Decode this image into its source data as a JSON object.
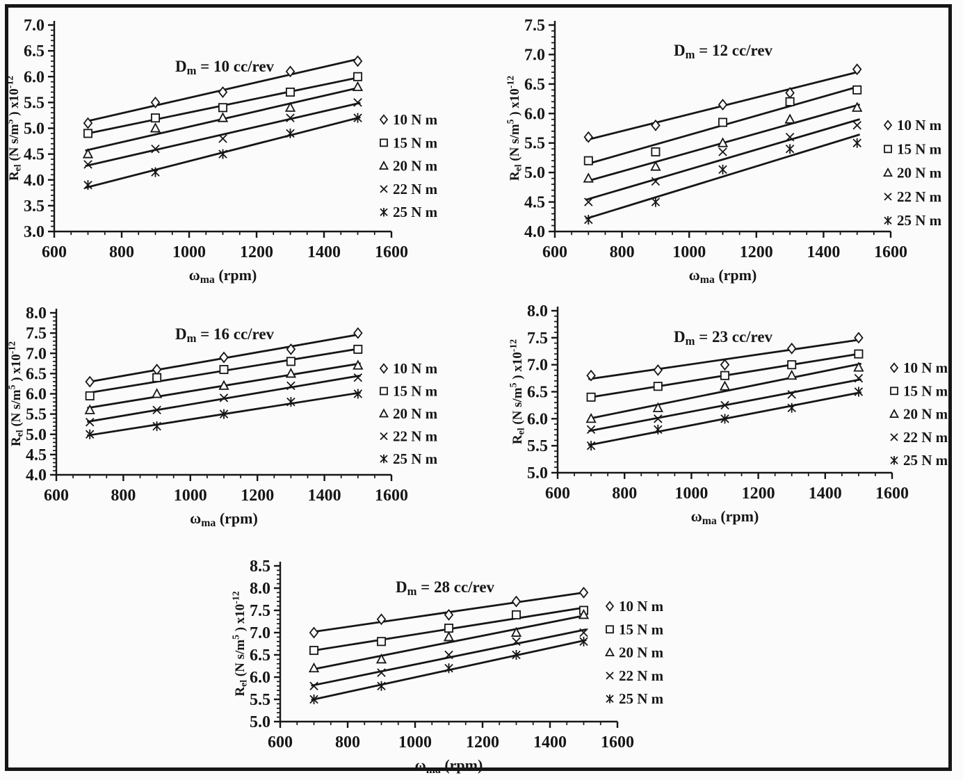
{
  "figure": {
    "description_labels": {
      "x_axis": "ω_ma (rpm)",
      "y_axis": "R_el (N s/m^5) x10^-12"
    },
    "border_color": "#161616",
    "background_color": "#fbfbfb"
  },
  "chart_data": [
    {
      "id": "dm-10",
      "type": "scatter",
      "title": "Dm = 10 cc/rev",
      "title_parts": [
        {
          "t": "D"
        },
        {
          "t": "m",
          "style": "sub"
        },
        {
          "t": " = 10 cc/rev"
        }
      ],
      "xlabel": "ω_ma (rpm)",
      "xlabel_parts": [
        {
          "t": "ω"
        },
        {
          "t": "ma",
          "style": "sub"
        },
        {
          "t": " (rpm)"
        }
      ],
      "ylabel": "R_el (N s/m^5) x10^-12",
      "ylabel_parts": [
        {
          "t": "R"
        },
        {
          "t": "el",
          "style": "sub"
        },
        {
          "t": " (N s/m"
        },
        {
          "t": "5",
          "style": "sup"
        },
        {
          "t": " ) x10"
        },
        {
          "t": "-12",
          "style": "sup"
        }
      ],
      "x": [
        700,
        900,
        1100,
        1300,
        1500
      ],
      "xlim": [
        600,
        1600
      ],
      "xtick_major": 200,
      "xtick_minor": 50,
      "ylim": [
        3.0,
        7.0
      ],
      "ytick_major": 0.5,
      "ytick_minor": 0.1,
      "grid": false,
      "legend_position": "right",
      "trendline": "linear",
      "series": [
        {
          "name": "10 N m",
          "marker": "diamond",
          "values": [
            5.1,
            5.5,
            5.7,
            6.1,
            6.3
          ]
        },
        {
          "name": "15 N m",
          "marker": "square",
          "values": [
            4.9,
            5.2,
            5.4,
            5.7,
            6.0
          ]
        },
        {
          "name": "20 N m",
          "marker": "triangle",
          "values": [
            4.5,
            5.0,
            5.2,
            5.4,
            5.8
          ]
        },
        {
          "name": "22 N m",
          "marker": "x",
          "values": [
            4.3,
            4.6,
            4.8,
            5.2,
            5.5
          ]
        },
        {
          "name": "25 N m",
          "marker": "star",
          "values": [
            3.9,
            4.15,
            4.5,
            4.9,
            5.2
          ]
        }
      ]
    },
    {
      "id": "dm-12",
      "type": "scatter",
      "title": "Dm = 12 cc/rev",
      "title_parts": [
        {
          "t": "D"
        },
        {
          "t": "m",
          "style": "sub"
        },
        {
          "t": " = 12 cc/rev"
        }
      ],
      "xlabel": "ω_ma (rpm)",
      "xlabel_parts": [
        {
          "t": "ω"
        },
        {
          "t": "ma",
          "style": "sub"
        },
        {
          "t": " (rpm)"
        }
      ],
      "ylabel": "R_el (N s/m^5) x10^-12",
      "ylabel_parts": [
        {
          "t": "R"
        },
        {
          "t": "el",
          "style": "sub"
        },
        {
          "t": " (N s/m"
        },
        {
          "t": "5",
          "style": "sup"
        },
        {
          "t": " ) x10"
        },
        {
          "t": "-12",
          "style": "sup"
        }
      ],
      "x": [
        700,
        900,
        1100,
        1300,
        1500
      ],
      "xlim": [
        600,
        1600
      ],
      "xtick_major": 200,
      "xtick_minor": 50,
      "ylim": [
        4.0,
        7.5
      ],
      "ytick_major": 0.5,
      "ytick_minor": 0.1,
      "grid": false,
      "legend_position": "right",
      "trendline": "linear",
      "series": [
        {
          "name": "10 N m",
          "marker": "diamond",
          "values": [
            5.6,
            5.8,
            6.15,
            6.35,
            6.75
          ]
        },
        {
          "name": "15 N m",
          "marker": "square",
          "values": [
            5.2,
            5.35,
            5.85,
            6.2,
            6.4
          ]
        },
        {
          "name": "20 N m",
          "marker": "triangle",
          "values": [
            4.9,
            5.1,
            5.5,
            5.9,
            6.1
          ]
        },
        {
          "name": "22 N m",
          "marker": "x",
          "values": [
            4.5,
            4.85,
            5.35,
            5.6,
            5.8
          ]
        },
        {
          "name": "25 N m",
          "marker": "star",
          "values": [
            4.2,
            4.5,
            5.05,
            5.4,
            5.5
          ]
        }
      ]
    },
    {
      "id": "dm-16",
      "type": "scatter",
      "title": "Dm = 16 cc/rev",
      "title_parts": [
        {
          "t": "D"
        },
        {
          "t": "m",
          "style": "sub"
        },
        {
          "t": " = 16 cc/rev"
        }
      ],
      "xlabel": "ω_ma (rpm)",
      "xlabel_parts": [
        {
          "t": "ω"
        },
        {
          "t": "ma",
          "style": "sub"
        },
        {
          "t": " (rpm)"
        }
      ],
      "ylabel": "R_el (N s/m^5) x10^-12",
      "ylabel_parts": [
        {
          "t": "R"
        },
        {
          "t": "el",
          "style": "sub"
        },
        {
          "t": " (N s/m"
        },
        {
          "t": "5",
          "style": "sup"
        },
        {
          "t": " ) x10"
        },
        {
          "t": "-12",
          "style": "sup"
        }
      ],
      "x": [
        700,
        900,
        1100,
        1300,
        1500
      ],
      "xlim": [
        600,
        1600
      ],
      "xtick_major": 200,
      "xtick_minor": 50,
      "ylim": [
        4.0,
        8.0
      ],
      "ytick_major": 0.5,
      "ytick_minor": 0.1,
      "grid": false,
      "legend_position": "right",
      "trendline": "linear",
      "series": [
        {
          "name": "10 N m",
          "marker": "diamond",
          "values": [
            6.3,
            6.6,
            6.9,
            7.1,
            7.5
          ]
        },
        {
          "name": "15 N m",
          "marker": "square",
          "values": [
            5.95,
            6.4,
            6.6,
            6.8,
            7.1
          ]
        },
        {
          "name": "20 N m",
          "marker": "triangle",
          "values": [
            5.6,
            6.0,
            6.2,
            6.5,
            6.7
          ]
        },
        {
          "name": "22 N m",
          "marker": "x",
          "values": [
            5.3,
            5.6,
            5.9,
            6.2,
            6.4
          ]
        },
        {
          "name": "25 N m",
          "marker": "star",
          "values": [
            5.0,
            5.2,
            5.5,
            5.8,
            6.0
          ]
        }
      ]
    },
    {
      "id": "dm-23",
      "type": "scatter",
      "title": "Dm = 23 cc/rev",
      "title_parts": [
        {
          "t": "D"
        },
        {
          "t": "m",
          "style": "sub"
        },
        {
          "t": " = 23 cc/rev"
        }
      ],
      "xlabel": "ω_ma (rpm)",
      "xlabel_parts": [
        {
          "t": "ω"
        },
        {
          "t": "ma",
          "style": "sub"
        },
        {
          "t": " (rpm)"
        }
      ],
      "ylabel": "R_el (N s/m^5) x10^-12",
      "ylabel_parts": [
        {
          "t": "R"
        },
        {
          "t": "el",
          "style": "sub"
        },
        {
          "t": " (N s/m"
        },
        {
          "t": "5",
          "style": "sup"
        },
        {
          "t": " ) x10"
        },
        {
          "t": "-12",
          "style": "sup"
        }
      ],
      "x": [
        700,
        900,
        1100,
        1300,
        1500
      ],
      "xlim": [
        600,
        1600
      ],
      "xtick_major": 200,
      "xtick_minor": 50,
      "ylim": [
        5.0,
        8.0
      ],
      "ytick_major": 0.5,
      "ytick_minor": 0.1,
      "grid": false,
      "legend_position": "right",
      "trendline": "linear",
      "series": [
        {
          "name": "10 N m",
          "marker": "diamond",
          "values": [
            6.8,
            6.9,
            7.0,
            7.3,
            7.5
          ]
        },
        {
          "name": "15 N m",
          "marker": "square",
          "values": [
            6.4,
            6.6,
            6.8,
            7.0,
            7.2
          ]
        },
        {
          "name": "20 N m",
          "marker": "triangle",
          "values": [
            6.0,
            6.2,
            6.6,
            6.8,
            6.95
          ]
        },
        {
          "name": "22 N m",
          "marker": "x",
          "values": [
            5.8,
            6.0,
            6.25,
            6.45,
            6.75
          ]
        },
        {
          "name": "25 N m",
          "marker": "star",
          "values": [
            5.5,
            5.8,
            6.0,
            6.2,
            6.5
          ]
        }
      ]
    },
    {
      "id": "dm-28",
      "type": "scatter",
      "title": "Dm = 28 cc/rev",
      "title_parts": [
        {
          "t": "D"
        },
        {
          "t": "m",
          "style": "sub"
        },
        {
          "t": " = 28 cc/rev"
        }
      ],
      "xlabel": "ω_ma (rpm)",
      "xlabel_parts": [
        {
          "t": "ω"
        },
        {
          "t": "ma",
          "style": "sub"
        },
        {
          "t": " (rpm)"
        }
      ],
      "ylabel": "R_el (N s/m^5) x10^-12",
      "ylabel_parts": [
        {
          "t": "R"
        },
        {
          "t": "el",
          "style": "sub"
        },
        {
          "t": " (N s/m"
        },
        {
          "t": "5",
          "style": "sup"
        },
        {
          "t": " ) x10"
        },
        {
          "t": "-12",
          "style": "sup"
        }
      ],
      "x": [
        700,
        900,
        1100,
        1300,
        1500
      ],
      "xlim": [
        600,
        1600
      ],
      "xtick_major": 200,
      "xtick_minor": 50,
      "ylim": [
        5.0,
        8.5
      ],
      "ytick_major": 0.5,
      "ytick_minor": 0.1,
      "grid": false,
      "legend_position": "right",
      "trendline": "linear",
      "series": [
        {
          "name": "10 N m",
          "marker": "diamond",
          "values": [
            7.0,
            7.3,
            7.4,
            7.7,
            7.9
          ]
        },
        {
          "name": "15 N m",
          "marker": "square",
          "values": [
            6.6,
            6.8,
            7.1,
            7.4,
            7.5
          ]
        },
        {
          "name": "20 N m",
          "marker": "triangle",
          "values": [
            6.2,
            6.4,
            6.9,
            7.0,
            7.4
          ]
        },
        {
          "name": "22 N m",
          "marker": "x",
          "values": [
            5.8,
            6.1,
            6.5,
            6.8,
            7.0
          ]
        },
        {
          "name": "25 N m",
          "marker": "star",
          "values": [
            5.5,
            5.8,
            6.2,
            6.5,
            6.8
          ]
        }
      ]
    }
  ]
}
